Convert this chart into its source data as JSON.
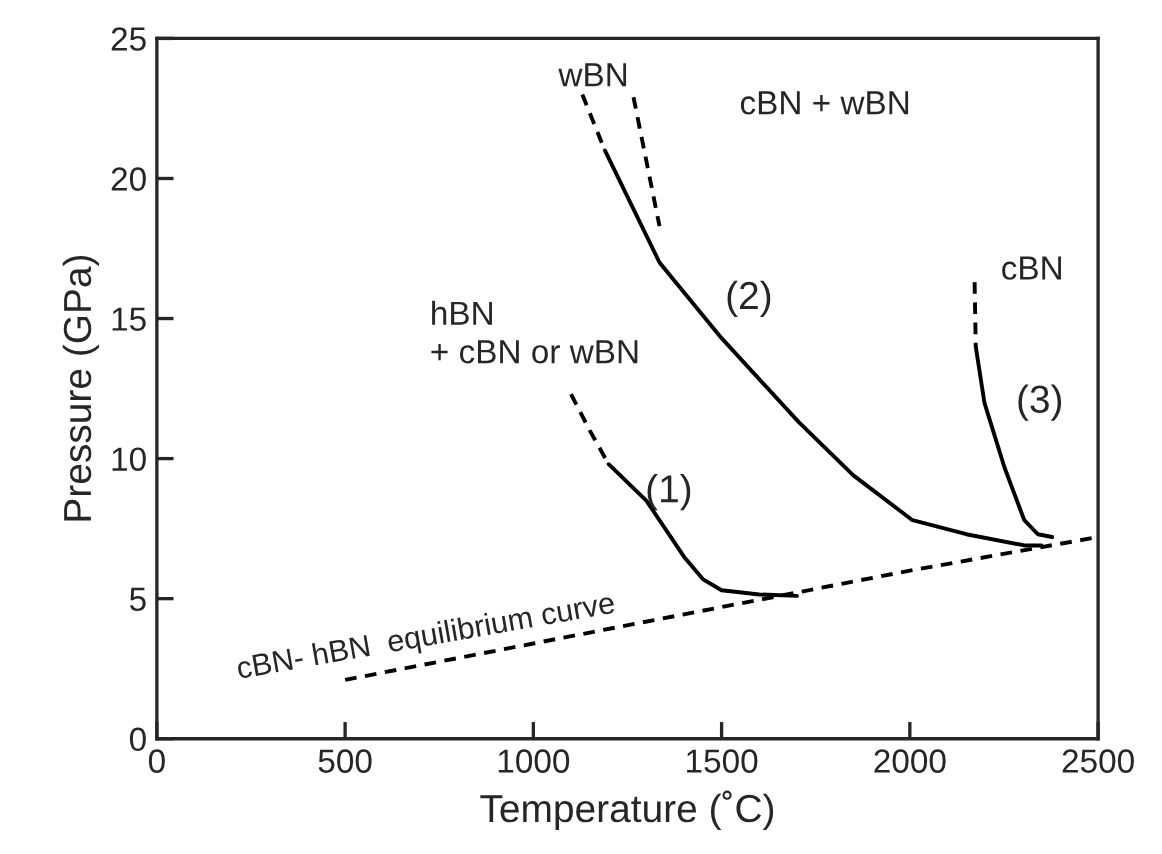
{
  "chart_data": {
    "type": "line",
    "xlabel": "Temperature (˚C)",
    "ylabel": "Pressure (GPa)",
    "xlim": [
      0,
      2500
    ],
    "ylim": [
      0,
      25
    ],
    "xticks": [
      0,
      500,
      1000,
      1500,
      2000,
      2500
    ],
    "yticks": [
      0,
      5,
      10,
      15,
      20,
      25
    ],
    "grid": false,
    "legend": false,
    "series": [
      {
        "color": "#000000",
        "line_style": "dashed",
        "x": [
          500,
          1000,
          1500,
          2000,
          2500
        ],
        "values": [
          2.1,
          3.4,
          4.7,
          6.0,
          7.2
        ]
      },
      {
        "color": "#000000",
        "line_style": "dashed",
        "x": [
          1100,
          1150,
          1200
        ],
        "values": [
          12.3,
          11.0,
          9.8
        ]
      },
      {
        "color": "#000000",
        "line_style": "solid",
        "x": [
          1200,
          1300,
          1400,
          1450,
          1500,
          1600,
          1700
        ],
        "values": [
          9.8,
          8.5,
          6.5,
          5.7,
          5.3,
          5.15,
          5.1
        ]
      },
      {
        "color": "#000000",
        "line_style": "dashed",
        "x": [
          1130,
          1190
        ],
        "values": [
          23.0,
          21.0
        ]
      },
      {
        "color": "#000000",
        "line_style": "solid",
        "x": [
          1190,
          1335,
          1500,
          1705,
          1850,
          2007,
          2150,
          2304,
          2350
        ],
        "values": [
          21.0,
          17.0,
          14.3,
          11.3,
          9.4,
          7.8,
          7.3,
          6.9,
          6.9
        ]
      },
      {
        "color": "#000000",
        "line_style": "dashed",
        "x": [
          1266,
          1335
        ],
        "values": [
          22.9,
          18.3
        ]
      },
      {
        "color": "#000000",
        "line_style": "dashed",
        "x": [
          2172,
          2175
        ],
        "values": [
          16.3,
          14.0
        ]
      },
      {
        "color": "#000000",
        "line_style": "solid",
        "x": [
          2175,
          2198,
          2251,
          2304,
          2340,
          2378
        ],
        "values": [
          14.0,
          12.0,
          9.7,
          7.8,
          7.3,
          7.2
        ]
      }
    ],
    "annotations": [
      "wBN",
      "cBN + wBN",
      "hBN\n+ cBN or wBN",
      "(1)",
      "(2)",
      "(3)",
      "cBN",
      "cBN- hBN  equilibrium curve"
    ]
  }
}
